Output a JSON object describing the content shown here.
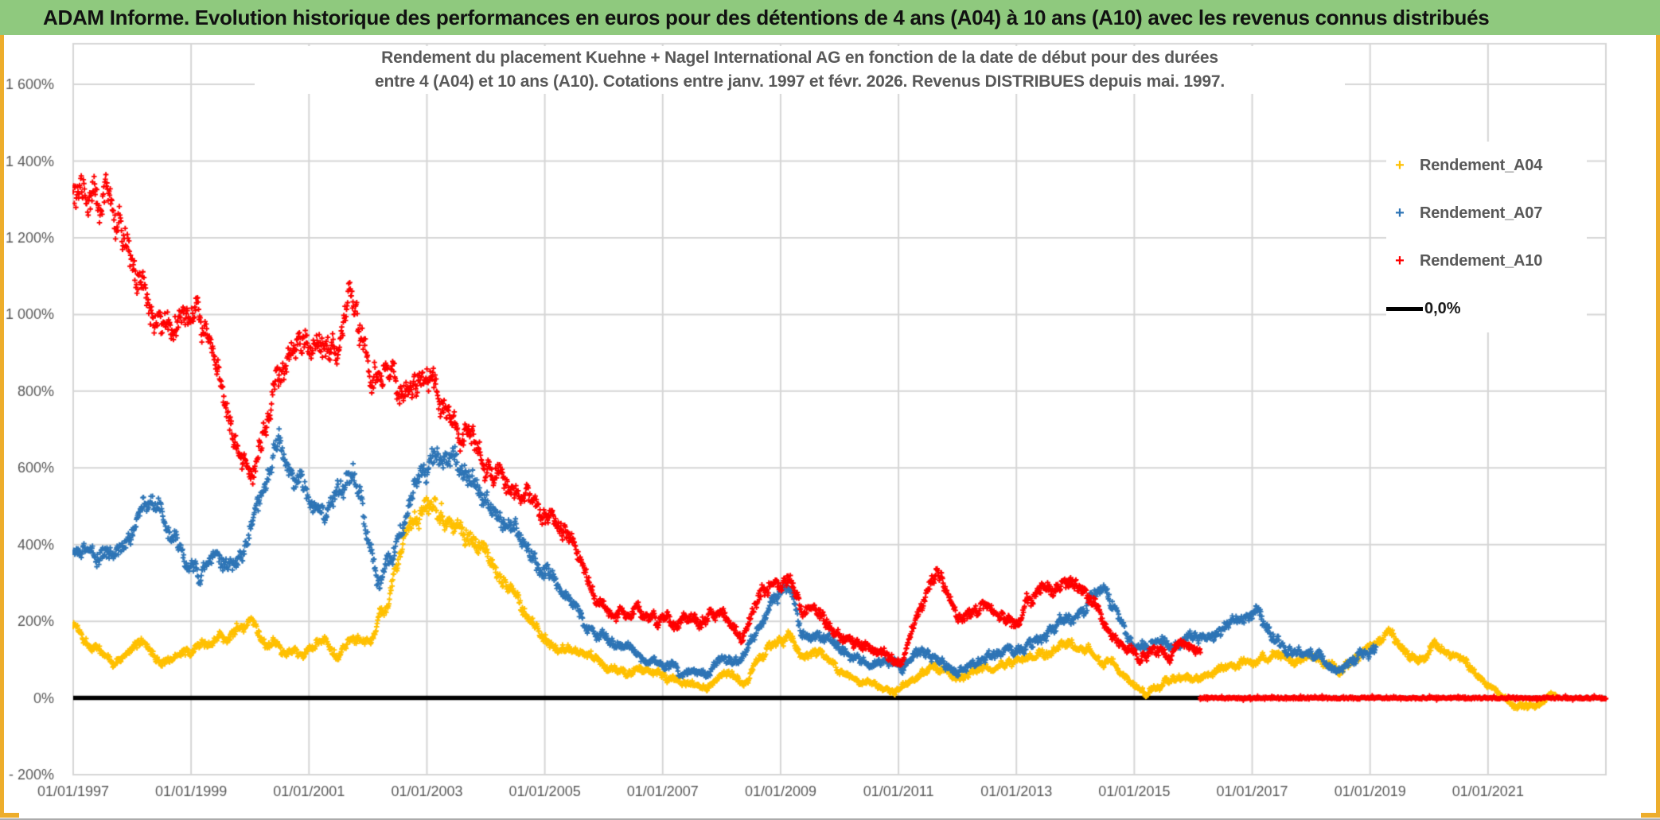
{
  "header": {
    "title": "ADAM Informe. Evolution historique des performances en euros pour des détentions de 4 ans (A04) à 10 ans (A10) avec les revenus connus distribués"
  },
  "colors": {
    "header_green": "#8FC97E",
    "gold_accent": "#EDAD2B",
    "grid": "#D6D6D6",
    "axis_text": "#595959",
    "title_text": "#595959",
    "series_a04": "#FFC000",
    "series_a07": "#2E75B6",
    "series_a10": "#FF0000",
    "zero_line": "#000000"
  },
  "chart_data": {
    "type": "scatter",
    "title_line1": "Rendement du placement Kuehne + Nagel International AG en fonction de la date de début pour des durées",
    "title_line2": "entre 4 (A04) et 10 ans (A10). Cotations entre janv. 1997 et févr. 2026. Revenus DISTRIBUES depuis mai. 1997.",
    "marker_glyph": "+",
    "x_axis": {
      "tick_labels": [
        "01/01/1997",
        "01/01/1999",
        "01/01/2001",
        "01/01/2003",
        "01/01/2005",
        "01/01/2007",
        "01/01/2009",
        "01/01/2011",
        "01/01/2013",
        "01/01/2015",
        "01/01/2017",
        "01/01/2019",
        "01/01/2021"
      ],
      "tick_years": [
        1997,
        1999,
        2001,
        2003,
        2005,
        2007,
        2009,
        2011,
        2013,
        2015,
        2017,
        2019,
        2021
      ],
      "grid_year_start": 1997,
      "grid_year_end": 2023,
      "grid_year_step": 2,
      "range_years": [
        1997,
        2023.05
      ]
    },
    "y_axis": {
      "tick_labels": [
        "1 600%",
        "1 400%",
        "1 200%",
        "1 000%",
        "800%",
        "600%",
        "400%",
        "200%",
        "0%",
        "- 200%"
      ],
      "tick_values": [
        1600,
        1400,
        1200,
        1000,
        800,
        600,
        400,
        200,
        0,
        -200
      ],
      "unit": "%"
    },
    "legend": [
      {
        "key": "a04",
        "label": "Rendement_A04",
        "color": "#FFC000"
      },
      {
        "key": "a07",
        "label": "Rendement_A07",
        "color": "#2E75B6"
      },
      {
        "key": "a10",
        "label": "Rendement_A10",
        "color": "#FF0000"
      }
    ],
    "zero_line": {
      "label": "0,0%",
      "color": "#000000",
      "from_year": 1997.0,
      "to_year": 2023.0,
      "value": 0
    },
    "a10_zero_band": {
      "color": "#FF0000",
      "from_year": 2016.12,
      "to_year": 2023.0,
      "value": 0
    },
    "series": [
      {
        "name": "Rendement_A04",
        "color": "#FFC000",
        "points_per_year": 110,
        "spread_base": 10,
        "spread_rel": 0.055,
        "anchors": [
          [
            1997.0,
            195
          ],
          [
            1997.35,
            140
          ],
          [
            1997.7,
            85
          ],
          [
            1998.0,
            120
          ],
          [
            1998.2,
            155
          ],
          [
            1998.5,
            95
          ],
          [
            1998.8,
            112
          ],
          [
            1999.1,
            130
          ],
          [
            1999.5,
            150
          ],
          [
            1999.8,
            180
          ],
          [
            2000.0,
            193
          ],
          [
            2000.3,
            130
          ],
          [
            2000.6,
            128
          ],
          [
            2000.9,
            108
          ],
          [
            2001.2,
            148
          ],
          [
            2001.5,
            128
          ],
          [
            2001.7,
            158
          ],
          [
            2002.0,
            150
          ],
          [
            2002.3,
            235
          ],
          [
            2002.6,
            400
          ],
          [
            2002.9,
            500
          ],
          [
            2003.15,
            505
          ],
          [
            2003.4,
            480
          ],
          [
            2003.7,
            445
          ],
          [
            2004.0,
            390
          ],
          [
            2004.3,
            305
          ],
          [
            2004.6,
            230
          ],
          [
            2004.9,
            170
          ],
          [
            2005.2,
            140
          ],
          [
            2005.5,
            122
          ],
          [
            2005.8,
            105
          ],
          [
            2006.1,
            80
          ],
          [
            2006.4,
            68
          ],
          [
            2006.7,
            72
          ],
          [
            2007.0,
            58
          ],
          [
            2007.4,
            35
          ],
          [
            2007.75,
            25
          ],
          [
            2008.1,
            72
          ],
          [
            2008.4,
            45
          ],
          [
            2008.7,
            118
          ],
          [
            2009.0,
            158
          ],
          [
            2009.15,
            172
          ],
          [
            2009.4,
            105
          ],
          [
            2009.7,
            122
          ],
          [
            2010.0,
            70
          ],
          [
            2010.3,
            45
          ],
          [
            2010.6,
            35
          ],
          [
            2010.95,
            18
          ],
          [
            2011.3,
            52
          ],
          [
            2011.55,
            85
          ],
          [
            2011.9,
            60
          ],
          [
            2012.2,
            65
          ],
          [
            2012.6,
            80
          ],
          [
            2013.0,
            95
          ],
          [
            2013.4,
            112
          ],
          [
            2013.9,
            140
          ],
          [
            2014.2,
            120
          ],
          [
            2014.6,
            88
          ],
          [
            2014.9,
            45
          ],
          [
            2015.2,
            10
          ],
          [
            2015.5,
            45
          ],
          [
            2015.8,
            55
          ],
          [
            2016.1,
            55
          ],
          [
            2016.5,
            75
          ],
          [
            2016.9,
            100
          ],
          [
            2017.2,
            112
          ],
          [
            2017.5,
            110
          ],
          [
            2017.8,
            92
          ],
          [
            2018.1,
            105
          ],
          [
            2018.45,
            72
          ],
          [
            2018.8,
            105
          ],
          [
            2019.1,
            140
          ],
          [
            2019.3,
            162
          ],
          [
            2019.6,
            120
          ],
          [
            2019.8,
            95
          ],
          [
            2020.1,
            135
          ],
          [
            2020.35,
            120
          ],
          [
            2020.6,
            100
          ],
          [
            2020.9,
            48
          ],
          [
            2021.2,
            5
          ],
          [
            2021.45,
            -20
          ],
          [
            2021.7,
            -25
          ],
          [
            2021.95,
            -8
          ],
          [
            2022.15,
            5
          ]
        ]
      },
      {
        "name": "Rendement_A07",
        "color": "#2E75B6",
        "points_per_year": 110,
        "spread_base": 12,
        "spread_rel": 0.05,
        "anchors": [
          [
            1997.0,
            375
          ],
          [
            1997.4,
            368
          ],
          [
            1997.8,
            395
          ],
          [
            1998.1,
            460
          ],
          [
            1998.3,
            528
          ],
          [
            1998.6,
            450
          ],
          [
            1998.9,
            362
          ],
          [
            1999.15,
            320
          ],
          [
            1999.4,
            378
          ],
          [
            1999.7,
            350
          ],
          [
            2000.0,
            430
          ],
          [
            2000.3,
            590
          ],
          [
            2000.5,
            690
          ],
          [
            2000.75,
            550
          ],
          [
            2001.0,
            500
          ],
          [
            2001.3,
            488
          ],
          [
            2001.55,
            540
          ],
          [
            2001.75,
            608
          ],
          [
            2002.0,
            420
          ],
          [
            2002.2,
            310
          ],
          [
            2002.5,
            420
          ],
          [
            2002.8,
            540
          ],
          [
            2003.1,
            620
          ],
          [
            2003.35,
            642
          ],
          [
            2003.7,
            578
          ],
          [
            2004.0,
            520
          ],
          [
            2004.3,
            460
          ],
          [
            2004.7,
            390
          ],
          [
            2005.0,
            330
          ],
          [
            2005.4,
            250
          ],
          [
            2005.9,
            160
          ],
          [
            2006.2,
            130
          ],
          [
            2006.5,
            125
          ],
          [
            2006.8,
            100
          ],
          [
            2007.1,
            90
          ],
          [
            2007.45,
            70
          ],
          [
            2007.75,
            60
          ],
          [
            2008.0,
            110
          ],
          [
            2008.3,
            95
          ],
          [
            2008.6,
            190
          ],
          [
            2008.9,
            245
          ],
          [
            2009.15,
            278
          ],
          [
            2009.35,
            180
          ],
          [
            2009.6,
            165
          ],
          [
            2009.9,
            155
          ],
          [
            2010.2,
            100
          ],
          [
            2010.5,
            80
          ],
          [
            2010.8,
            95
          ],
          [
            2011.05,
            80
          ],
          [
            2011.4,
            120
          ],
          [
            2011.7,
            100
          ],
          [
            2012.0,
            65
          ],
          [
            2012.3,
            100
          ],
          [
            2012.6,
            115
          ],
          [
            2012.9,
            120
          ],
          [
            2013.2,
            140
          ],
          [
            2013.5,
            160
          ],
          [
            2013.8,
            200
          ],
          [
            2014.05,
            215
          ],
          [
            2014.3,
            258
          ],
          [
            2014.5,
            278
          ],
          [
            2014.75,
            200
          ],
          [
            2015.0,
            135
          ],
          [
            2015.25,
            125
          ],
          [
            2015.5,
            150
          ],
          [
            2015.75,
            135
          ],
          [
            2016.0,
            150
          ],
          [
            2016.3,
            160
          ],
          [
            2016.6,
            190
          ],
          [
            2016.9,
            210
          ],
          [
            2017.1,
            222
          ],
          [
            2017.3,
            180
          ],
          [
            2017.5,
            130
          ],
          [
            2017.7,
            110
          ],
          [
            2017.95,
            125
          ],
          [
            2018.2,
            90
          ],
          [
            2018.5,
            75
          ],
          [
            2018.75,
            100
          ],
          [
            2019.0,
            118
          ],
          [
            2019.1,
            125
          ]
        ]
      },
      {
        "name": "Rendement_A10",
        "color": "#FF0000",
        "points_per_year": 110,
        "spread_base": 14,
        "spread_rel": 0.042,
        "anchors": [
          [
            1997.0,
            1330
          ],
          [
            1997.3,
            1300
          ],
          [
            1997.6,
            1265
          ],
          [
            1997.9,
            1190
          ],
          [
            1998.1,
            1110
          ],
          [
            1998.35,
            1020
          ],
          [
            1998.6,
            960
          ],
          [
            1998.85,
            990
          ],
          [
            1999.1,
            1010
          ],
          [
            1999.35,
            900
          ],
          [
            1999.6,
            770
          ],
          [
            1999.85,
            635
          ],
          [
            2000.05,
            590
          ],
          [
            2000.3,
            750
          ],
          [
            2000.55,
            870
          ],
          [
            2000.8,
            930
          ],
          [
            2001.0,
            905
          ],
          [
            2001.25,
            925
          ],
          [
            2001.5,
            895
          ],
          [
            2001.68,
            1080
          ],
          [
            2001.85,
            945
          ],
          [
            2002.05,
            830
          ],
          [
            2002.3,
            858
          ],
          [
            2002.55,
            790
          ],
          [
            2002.8,
            828
          ],
          [
            2003.0,
            840
          ],
          [
            2003.2,
            788
          ],
          [
            2003.45,
            730
          ],
          [
            2003.7,
            680
          ],
          [
            2004.0,
            622
          ],
          [
            2004.3,
            580
          ],
          [
            2004.6,
            545
          ],
          [
            2004.9,
            500
          ],
          [
            2005.15,
            460
          ],
          [
            2005.4,
            418
          ],
          [
            2005.65,
            345
          ],
          [
            2005.9,
            255
          ],
          [
            2006.2,
            210
          ],
          [
            2006.55,
            230
          ],
          [
            2006.9,
            200
          ],
          [
            2007.3,
            195
          ],
          [
            2007.7,
            205
          ],
          [
            2008.0,
            225
          ],
          [
            2008.35,
            155
          ],
          [
            2008.7,
            290
          ],
          [
            2009.0,
            305
          ],
          [
            2009.15,
            315
          ],
          [
            2009.4,
            222
          ],
          [
            2009.6,
            235
          ],
          [
            2009.9,
            185
          ],
          [
            2010.2,
            140
          ],
          [
            2010.5,
            130
          ],
          [
            2010.8,
            112
          ],
          [
            2011.05,
            105
          ],
          [
            2011.3,
            200
          ],
          [
            2011.65,
            330
          ],
          [
            2011.85,
            255
          ],
          [
            2012.1,
            205
          ],
          [
            2012.4,
            248
          ],
          [
            2012.7,
            212
          ],
          [
            2013.0,
            200
          ],
          [
            2013.3,
            288
          ],
          [
            2013.6,
            278
          ],
          [
            2013.95,
            302
          ],
          [
            2014.3,
            248
          ],
          [
            2014.6,
            180
          ],
          [
            2014.9,
            128
          ],
          [
            2015.1,
            100
          ],
          [
            2015.35,
            140
          ],
          [
            2015.6,
            112
          ],
          [
            2015.85,
            135
          ],
          [
            2016.12,
            112
          ]
        ]
      }
    ]
  }
}
